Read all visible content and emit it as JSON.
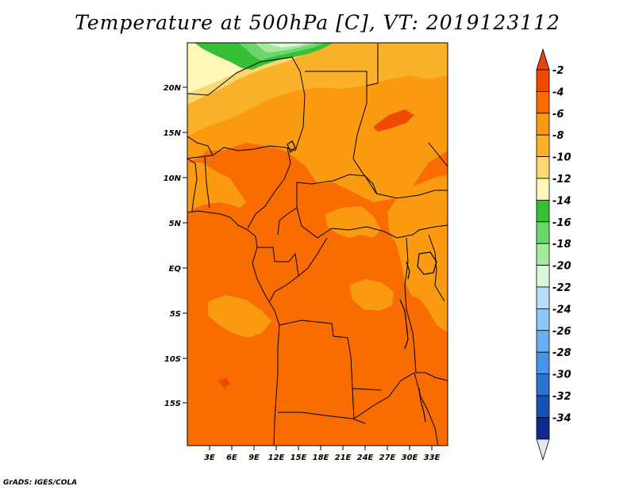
{
  "title": "Temperature at 500hPa [C], VT: 2019123112",
  "credit": "GrADS: IGES/COLA",
  "map": {
    "variable": "Temperature at 500hPa",
    "units": "C",
    "valid_time": "2019123112",
    "lat_labels": [
      "20N",
      "15N",
      "10N",
      "5N",
      "EQ",
      "5S",
      "10S",
      "15S"
    ],
    "lon_labels": [
      "3E",
      "6E",
      "9E",
      "12E",
      "15E",
      "18E",
      "21E",
      "24E",
      "27E",
      "30E",
      "33E"
    ]
  },
  "colorbar": {
    "labels": [
      "-2",
      "-4",
      "-6",
      "-8",
      "-10",
      "-12",
      "-14",
      "-16",
      "-18",
      "-20",
      "-22",
      "-24",
      "-26",
      "-28",
      "-30",
      "-32",
      "-34"
    ],
    "colors": [
      "#f04a00",
      "#f86c00",
      "#f99a10",
      "#fbb22a",
      "#fcd870",
      "#fff8b8",
      "#36c038",
      "#6cd66a",
      "#a6eaa0",
      "#dcf8dc",
      "#b8def8",
      "#8ec6f4",
      "#68aef0",
      "#4a94e8",
      "#2c72d4",
      "#1a50b4",
      "#0e2a8c"
    ],
    "top_arrow_color": "#e8400e",
    "bottom_arrow_color": "#e8e4f8"
  }
}
